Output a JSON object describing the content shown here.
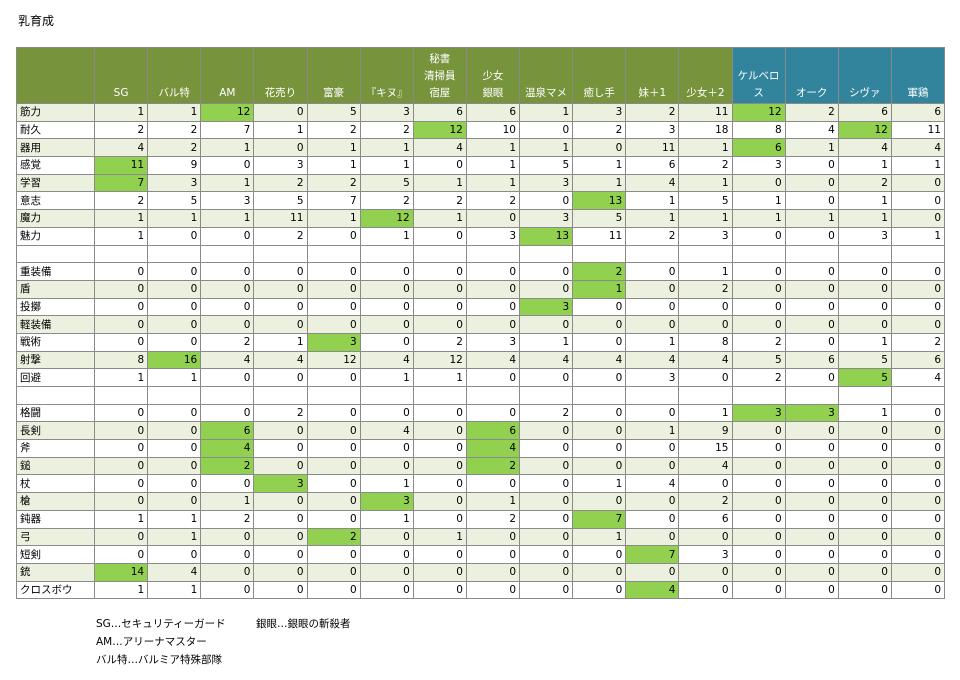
{
  "header": {
    "title": "乳育成"
  },
  "table": {
    "columns": [
      "SG",
      "バル特",
      "AM",
      "花売り",
      "富豪",
      "『キヌ』",
      "秘書\n清掃員\n宿屋",
      "少女\n銀眼",
      "温泉マメ",
      "癒し手",
      "妹＋1",
      "少女＋2",
      "ケルベロス",
      "オーク",
      "シヴァ",
      "軍鶏"
    ],
    "alt_columns_from": 12,
    "sections": [
      [
        {
          "label": "筋力",
          "values": [
            1,
            1,
            12,
            0,
            5,
            3,
            6,
            6,
            1,
            3,
            2,
            11,
            12,
            2,
            6,
            6
          ],
          "highlight": [
            2,
            12
          ]
        },
        {
          "label": "耐久",
          "values": [
            2,
            2,
            7,
            1,
            2,
            2,
            12,
            10,
            0,
            2,
            3,
            18,
            8,
            4,
            12,
            11
          ],
          "highlight": [
            6,
            14
          ]
        },
        {
          "label": "器用",
          "values": [
            4,
            2,
            1,
            0,
            1,
            1,
            4,
            1,
            1,
            0,
            11,
            1,
            6,
            1,
            4,
            4
          ],
          "highlight": [
            12
          ]
        },
        {
          "label": "感覚",
          "values": [
            11,
            9,
            0,
            3,
            1,
            1,
            0,
            1,
            5,
            1,
            6,
            2,
            3,
            0,
            1,
            1
          ],
          "highlight": [
            0
          ]
        },
        {
          "label": "学習",
          "values": [
            7,
            3,
            1,
            2,
            2,
            5,
            1,
            1,
            3,
            1,
            4,
            1,
            0,
            0,
            2,
            0
          ],
          "highlight": [
            0
          ]
        },
        {
          "label": "意志",
          "values": [
            2,
            5,
            3,
            5,
            7,
            2,
            2,
            2,
            0,
            13,
            1,
            5,
            1,
            0,
            1,
            0
          ],
          "highlight": [
            9
          ]
        },
        {
          "label": "魔力",
          "values": [
            1,
            1,
            1,
            11,
            1,
            12,
            1,
            0,
            3,
            5,
            1,
            1,
            1,
            1,
            1,
            0
          ],
          "highlight": [
            5
          ]
        },
        {
          "label": "魅力",
          "values": [
            1,
            0,
            0,
            2,
            0,
            1,
            0,
            3,
            13,
            11,
            2,
            3,
            0,
            0,
            3,
            1
          ],
          "highlight": [
            8
          ]
        }
      ],
      [
        {
          "label": "重装備",
          "values": [
            0,
            0,
            0,
            0,
            0,
            0,
            0,
            0,
            0,
            2,
            0,
            1,
            0,
            0,
            0,
            0
          ],
          "highlight": [
            9
          ]
        },
        {
          "label": "盾",
          "values": [
            0,
            0,
            0,
            0,
            0,
            0,
            0,
            0,
            0,
            1,
            0,
            2,
            0,
            0,
            0,
            0
          ],
          "highlight": [
            9
          ]
        },
        {
          "label": "投擲",
          "values": [
            0,
            0,
            0,
            0,
            0,
            0,
            0,
            0,
            3,
            0,
            0,
            0,
            0,
            0,
            0,
            0
          ],
          "highlight": [
            8
          ]
        },
        {
          "label": "軽装備",
          "values": [
            0,
            0,
            0,
            0,
            0,
            0,
            0,
            0,
            0,
            0,
            0,
            0,
            0,
            0,
            0,
            0
          ],
          "highlight": []
        },
        {
          "label": "戦術",
          "values": [
            0,
            0,
            2,
            1,
            3,
            0,
            2,
            3,
            1,
            0,
            1,
            8,
            2,
            0,
            1,
            2
          ],
          "highlight": [
            4
          ]
        },
        {
          "label": "射撃",
          "values": [
            8,
            16,
            4,
            4,
            12,
            4,
            12,
            4,
            4,
            4,
            4,
            4,
            5,
            6,
            5,
            6
          ],
          "highlight": [
            1
          ]
        },
        {
          "label": "回避",
          "values": [
            1,
            1,
            0,
            0,
            0,
            1,
            1,
            0,
            0,
            0,
            3,
            0,
            2,
            0,
            5,
            4
          ],
          "highlight": [
            14
          ]
        }
      ],
      [
        {
          "label": "格闘",
          "values": [
            0,
            0,
            0,
            2,
            0,
            0,
            0,
            0,
            2,
            0,
            0,
            1,
            3,
            3,
            1,
            0
          ],
          "highlight": [
            12,
            13
          ]
        },
        {
          "label": "長剣",
          "values": [
            0,
            0,
            6,
            0,
            0,
            4,
            0,
            6,
            0,
            0,
            1,
            9,
            0,
            0,
            0,
            0
          ],
          "highlight": [
            2,
            7
          ]
        },
        {
          "label": "斧",
          "values": [
            0,
            0,
            4,
            0,
            0,
            0,
            0,
            4,
            0,
            0,
            0,
            15,
            0,
            0,
            0,
            0
          ],
          "highlight": [
            2,
            7
          ]
        },
        {
          "label": "鎚",
          "values": [
            0,
            0,
            2,
            0,
            0,
            0,
            0,
            2,
            0,
            0,
            0,
            4,
            0,
            0,
            0,
            0
          ],
          "highlight": [
            2,
            7
          ]
        },
        {
          "label": "杖",
          "values": [
            0,
            0,
            0,
            3,
            0,
            1,
            0,
            0,
            0,
            1,
            4,
            0,
            0,
            0,
            0,
            0
          ],
          "highlight": [
            3
          ]
        },
        {
          "label": "槍",
          "values": [
            0,
            0,
            1,
            0,
            0,
            3,
            0,
            1,
            0,
            0,
            0,
            2,
            0,
            0,
            0,
            0
          ],
          "highlight": [
            5
          ]
        },
        {
          "label": "鈍器",
          "values": [
            1,
            1,
            2,
            0,
            0,
            1,
            0,
            2,
            0,
            7,
            0,
            6,
            0,
            0,
            0,
            0
          ],
          "highlight": [
            9
          ]
        },
        {
          "label": "弓",
          "values": [
            0,
            1,
            0,
            0,
            2,
            0,
            1,
            0,
            0,
            1,
            0,
            0,
            0,
            0,
            0,
            0
          ],
          "highlight": [
            4
          ]
        },
        {
          "label": "短剣",
          "values": [
            0,
            0,
            0,
            0,
            0,
            0,
            0,
            0,
            0,
            0,
            7,
            3,
            0,
            0,
            0,
            0
          ],
          "highlight": [
            10
          ]
        },
        {
          "label": "銃",
          "values": [
            14,
            4,
            0,
            0,
            0,
            0,
            0,
            0,
            0,
            0,
            0,
            0,
            0,
            0,
            0,
            0
          ],
          "highlight": [
            0
          ]
        },
        {
          "label": "クロスボウ",
          "values": [
            1,
            1,
            0,
            0,
            0,
            0,
            0,
            0,
            0,
            0,
            4,
            0,
            0,
            0,
            0,
            0
          ],
          "highlight": [
            10
          ]
        }
      ]
    ]
  },
  "notes": [
    "SG…セキュリティーガード",
    "AM…アリーナマスター",
    "バル特…バルミア特殊部隊",
    "銀眼…銀眼の斬殺者"
  ]
}
